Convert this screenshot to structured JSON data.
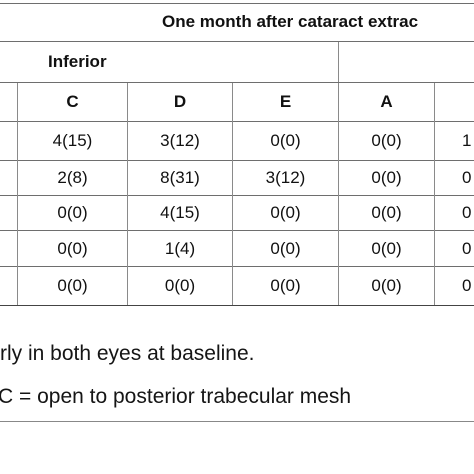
{
  "table": {
    "title": "One month after cataract extrac",
    "subgroup_label": "Inferior",
    "columns": [
      "C",
      "D",
      "E",
      "A",
      ""
    ],
    "rows": [
      [
        "4(15)",
        "3(12)",
        "0(0)",
        "0(0)",
        "1"
      ],
      [
        "2(8)",
        "8(31)",
        "3(12)",
        "0(0)",
        "0"
      ],
      [
        "0(0)",
        "4(15)",
        "0(0)",
        "0(0)",
        "0"
      ],
      [
        "0(0)",
        "1(4)",
        "0(0)",
        "0(0)",
        "0"
      ],
      [
        "0(0)",
        "0(0)",
        "0(0)",
        "0(0)",
        "0"
      ]
    ]
  },
  "footnotes": {
    "line1": "rly in both eyes at baseline.",
    "line2": "C = open to posterior trabecular mesh"
  }
}
